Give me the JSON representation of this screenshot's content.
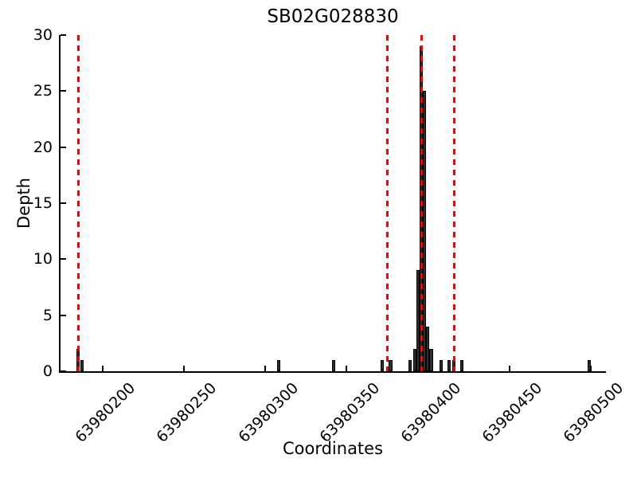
{
  "chart_data": {
    "type": "bar",
    "title": "SB02G028830",
    "xlabel": "Coordinates",
    "ylabel": "Depth",
    "xlim": [
      63980174,
      63980509
    ],
    "ylim": [
      0,
      30
    ],
    "xticks": [
      63980200,
      63980250,
      63980300,
      63980350,
      63980400,
      63980450,
      63980500
    ],
    "yticks": [
      0,
      5,
      10,
      15,
      20,
      25,
      30
    ],
    "grid": false,
    "legend": null,
    "bar_width_units": 2,
    "bars": [
      {
        "coordinate": 63980185,
        "depth": 2
      },
      {
        "coordinate": 63980187,
        "depth": 1
      },
      {
        "coordinate": 63980308,
        "depth": 1
      },
      {
        "coordinate": 63980342,
        "depth": 1
      },
      {
        "coordinate": 63980372,
        "depth": 1
      },
      {
        "coordinate": 63980377,
        "depth": 1
      },
      {
        "coordinate": 63980389,
        "depth": 1
      },
      {
        "coordinate": 63980392,
        "depth": 2
      },
      {
        "coordinate": 63980394,
        "depth": 9
      },
      {
        "coordinate": 63980396,
        "depth": 29
      },
      {
        "coordinate": 63980398,
        "depth": 25
      },
      {
        "coordinate": 63980400,
        "depth": 4
      },
      {
        "coordinate": 63980402,
        "depth": 2
      },
      {
        "coordinate": 63980408,
        "depth": 1
      },
      {
        "coordinate": 63980413,
        "depth": 1
      },
      {
        "coordinate": 63980416,
        "depth": 1
      },
      {
        "coordinate": 63980421,
        "depth": 1
      },
      {
        "coordinate": 63980499,
        "depth": 1
      }
    ],
    "vlines": {
      "positions": [
        63980185,
        63980375,
        63980396,
        63980416
      ],
      "style": "dashed",
      "color": "#ff0000"
    },
    "colors": {
      "bar_fill": "#2e2e2e",
      "bar_edge": "#000000",
      "vline": "#ff0000",
      "axis": "#000000",
      "background": "#ffffff"
    }
  }
}
